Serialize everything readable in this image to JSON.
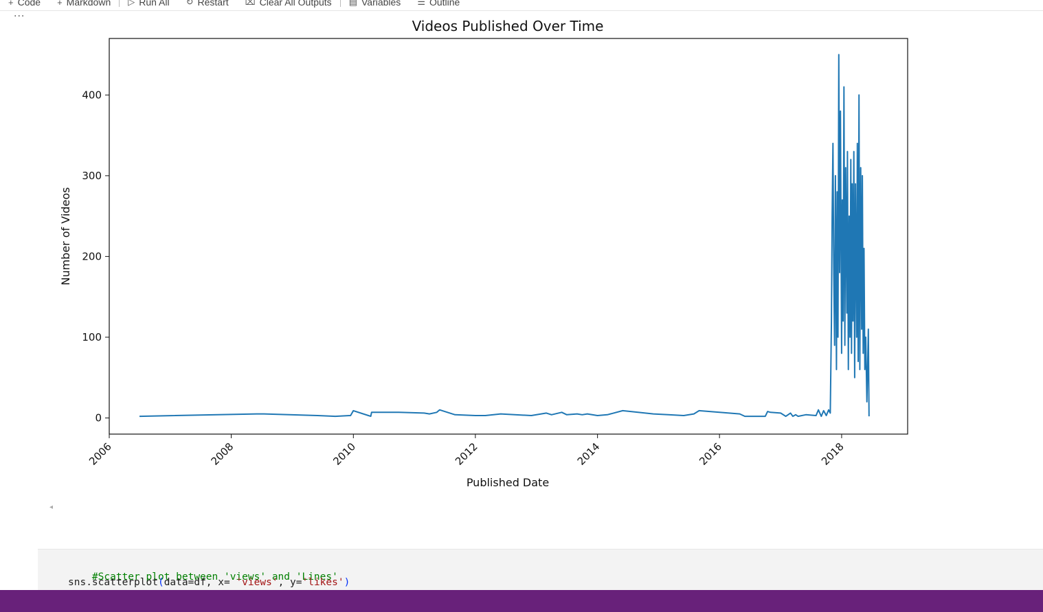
{
  "toolbar": {
    "items": [
      {
        "icon": "+",
        "label": "Code"
      },
      {
        "icon": "+",
        "label": "Markdown"
      },
      {
        "icon": "▷",
        "label": "Run All"
      },
      {
        "icon": "↻",
        "label": "Restart"
      },
      {
        "icon": "⌧",
        "label": "Clear All Outputs"
      },
      {
        "icon": "▤",
        "label": "Variables"
      },
      {
        "icon": "☰",
        "label": "Outline"
      }
    ]
  },
  "cell_menu": "...",
  "chart_data": {
    "type": "line",
    "title": "Videos Published Over Time",
    "xlabel": "Published Date",
    "ylabel": "Number of Videos",
    "xlim": [
      "2006-01-01",
      "2019-01-31"
    ],
    "ylim": [
      -20,
      470
    ],
    "xticks": [
      "2006",
      "2008",
      "2010",
      "2012",
      "2014",
      "2016",
      "2018"
    ],
    "yticks": [
      0,
      100,
      200,
      300,
      400
    ],
    "grid": false,
    "legend": "none",
    "color": "#1f77b4",
    "x": [
      "2006-07-01",
      "2008-06-01",
      "2008-07-15",
      "2009-06-01",
      "2009-09-15",
      "2009-12-15",
      "2010-01-01",
      "2010-04-01",
      "2010-04-15",
      "2010-04-20",
      "2010-10-01",
      "2011-03-01",
      "2011-04-01",
      "2011-05-15",
      "2011-06-01",
      "2011-09-01",
      "2012-01-01",
      "2012-03-01",
      "2012-06-01",
      "2012-12-01",
      "2013-03-01",
      "2013-04-01",
      "2013-06-01",
      "2013-07-01",
      "2013-09-01",
      "2013-10-01",
      "2013-11-01",
      "2014-01-01",
      "2014-03-01",
      "2014-06-01",
      "2014-09-01",
      "2014-12-01",
      "2015-03-01",
      "2015-06-01",
      "2015-08-01",
      "2015-09-01",
      "2016-01-01",
      "2016-05-01",
      "2016-06-01",
      "2016-10-01",
      "2016-10-15",
      "2016-11-01",
      "2017-01-01",
      "2017-02-01",
      "2017-03-01",
      "2017-03-15",
      "2017-04-01",
      "2017-04-15",
      "2017-06-01",
      "2017-08-01",
      "2017-08-15",
      "2017-09-01",
      "2017-09-15",
      "2017-10-01",
      "2017-10-15",
      "2017-10-25",
      "2017-11-01",
      "2017-11-05",
      "2017-11-10",
      "2017-11-15",
      "2017-11-20",
      "2017-11-25",
      "2017-12-01",
      "2017-12-05",
      "2017-12-10",
      "2017-12-15",
      "2017-12-20",
      "2017-12-25",
      "2018-01-01",
      "2018-01-05",
      "2018-01-10",
      "2018-01-15",
      "2018-01-20",
      "2018-01-25",
      "2018-02-01",
      "2018-02-05",
      "2018-02-10",
      "2018-02-15",
      "2018-02-20",
      "2018-02-25",
      "2018-03-01",
      "2018-03-05",
      "2018-03-10",
      "2018-03-15",
      "2018-03-20",
      "2018-03-25",
      "2018-04-01",
      "2018-04-05",
      "2018-04-10",
      "2018-04-15",
      "2018-04-20",
      "2018-04-25",
      "2018-05-01",
      "2018-05-05",
      "2018-05-10",
      "2018-05-15",
      "2018-05-20",
      "2018-05-25",
      "2018-06-01",
      "2018-06-05",
      "2018-06-10",
      "2018-06-14"
    ],
    "y": [
      2,
      5,
      5,
      3,
      2,
      3,
      9,
      3,
      2,
      7,
      7,
      6,
      5,
      7,
      10,
      4,
      3,
      3,
      5,
      3,
      6,
      4,
      7,
      4,
      5,
      4,
      5,
      3,
      4,
      9,
      7,
      5,
      4,
      3,
      5,
      9,
      7,
      5,
      2,
      2,
      8,
      7,
      6,
      2,
      6,
      2,
      4,
      2,
      4,
      3,
      10,
      2,
      9,
      3,
      10,
      6,
      120,
      250,
      340,
      180,
      90,
      300,
      60,
      280,
      100,
      450,
      180,
      380,
      80,
      270,
      120,
      410,
      90,
      310,
      130,
      330,
      60,
      250,
      100,
      320,
      80,
      290,
      120,
      330,
      50,
      290,
      100,
      340,
      70,
      400,
      60,
      310,
      110,
      300,
      80,
      210,
      60,
      100,
      20,
      55,
      110,
      2
    ]
  },
  "code_cell": {
    "line1": "#Scatter plot between 'views' and 'Lines'",
    "line2_fn": "sns.scatterplot",
    "line2_open": "(",
    "line2_mid1": "data=df, x= ",
    "line2_str1": "'views'",
    "line2_mid2": ", y=",
    "line2_str2": "'likes'",
    "line2_close": ")"
  }
}
